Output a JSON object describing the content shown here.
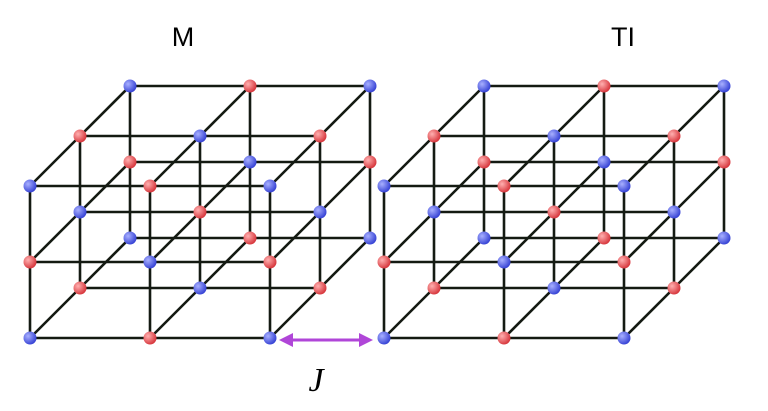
{
  "labels": {
    "left_lattice": "M",
    "right_lattice": "TI",
    "coupling": "J"
  },
  "colors": {
    "site_a": "#e0484f",
    "site_b": "#4c58e0",
    "edge": "#141a12",
    "coupling_arrow": "#b046d8"
  }
}
